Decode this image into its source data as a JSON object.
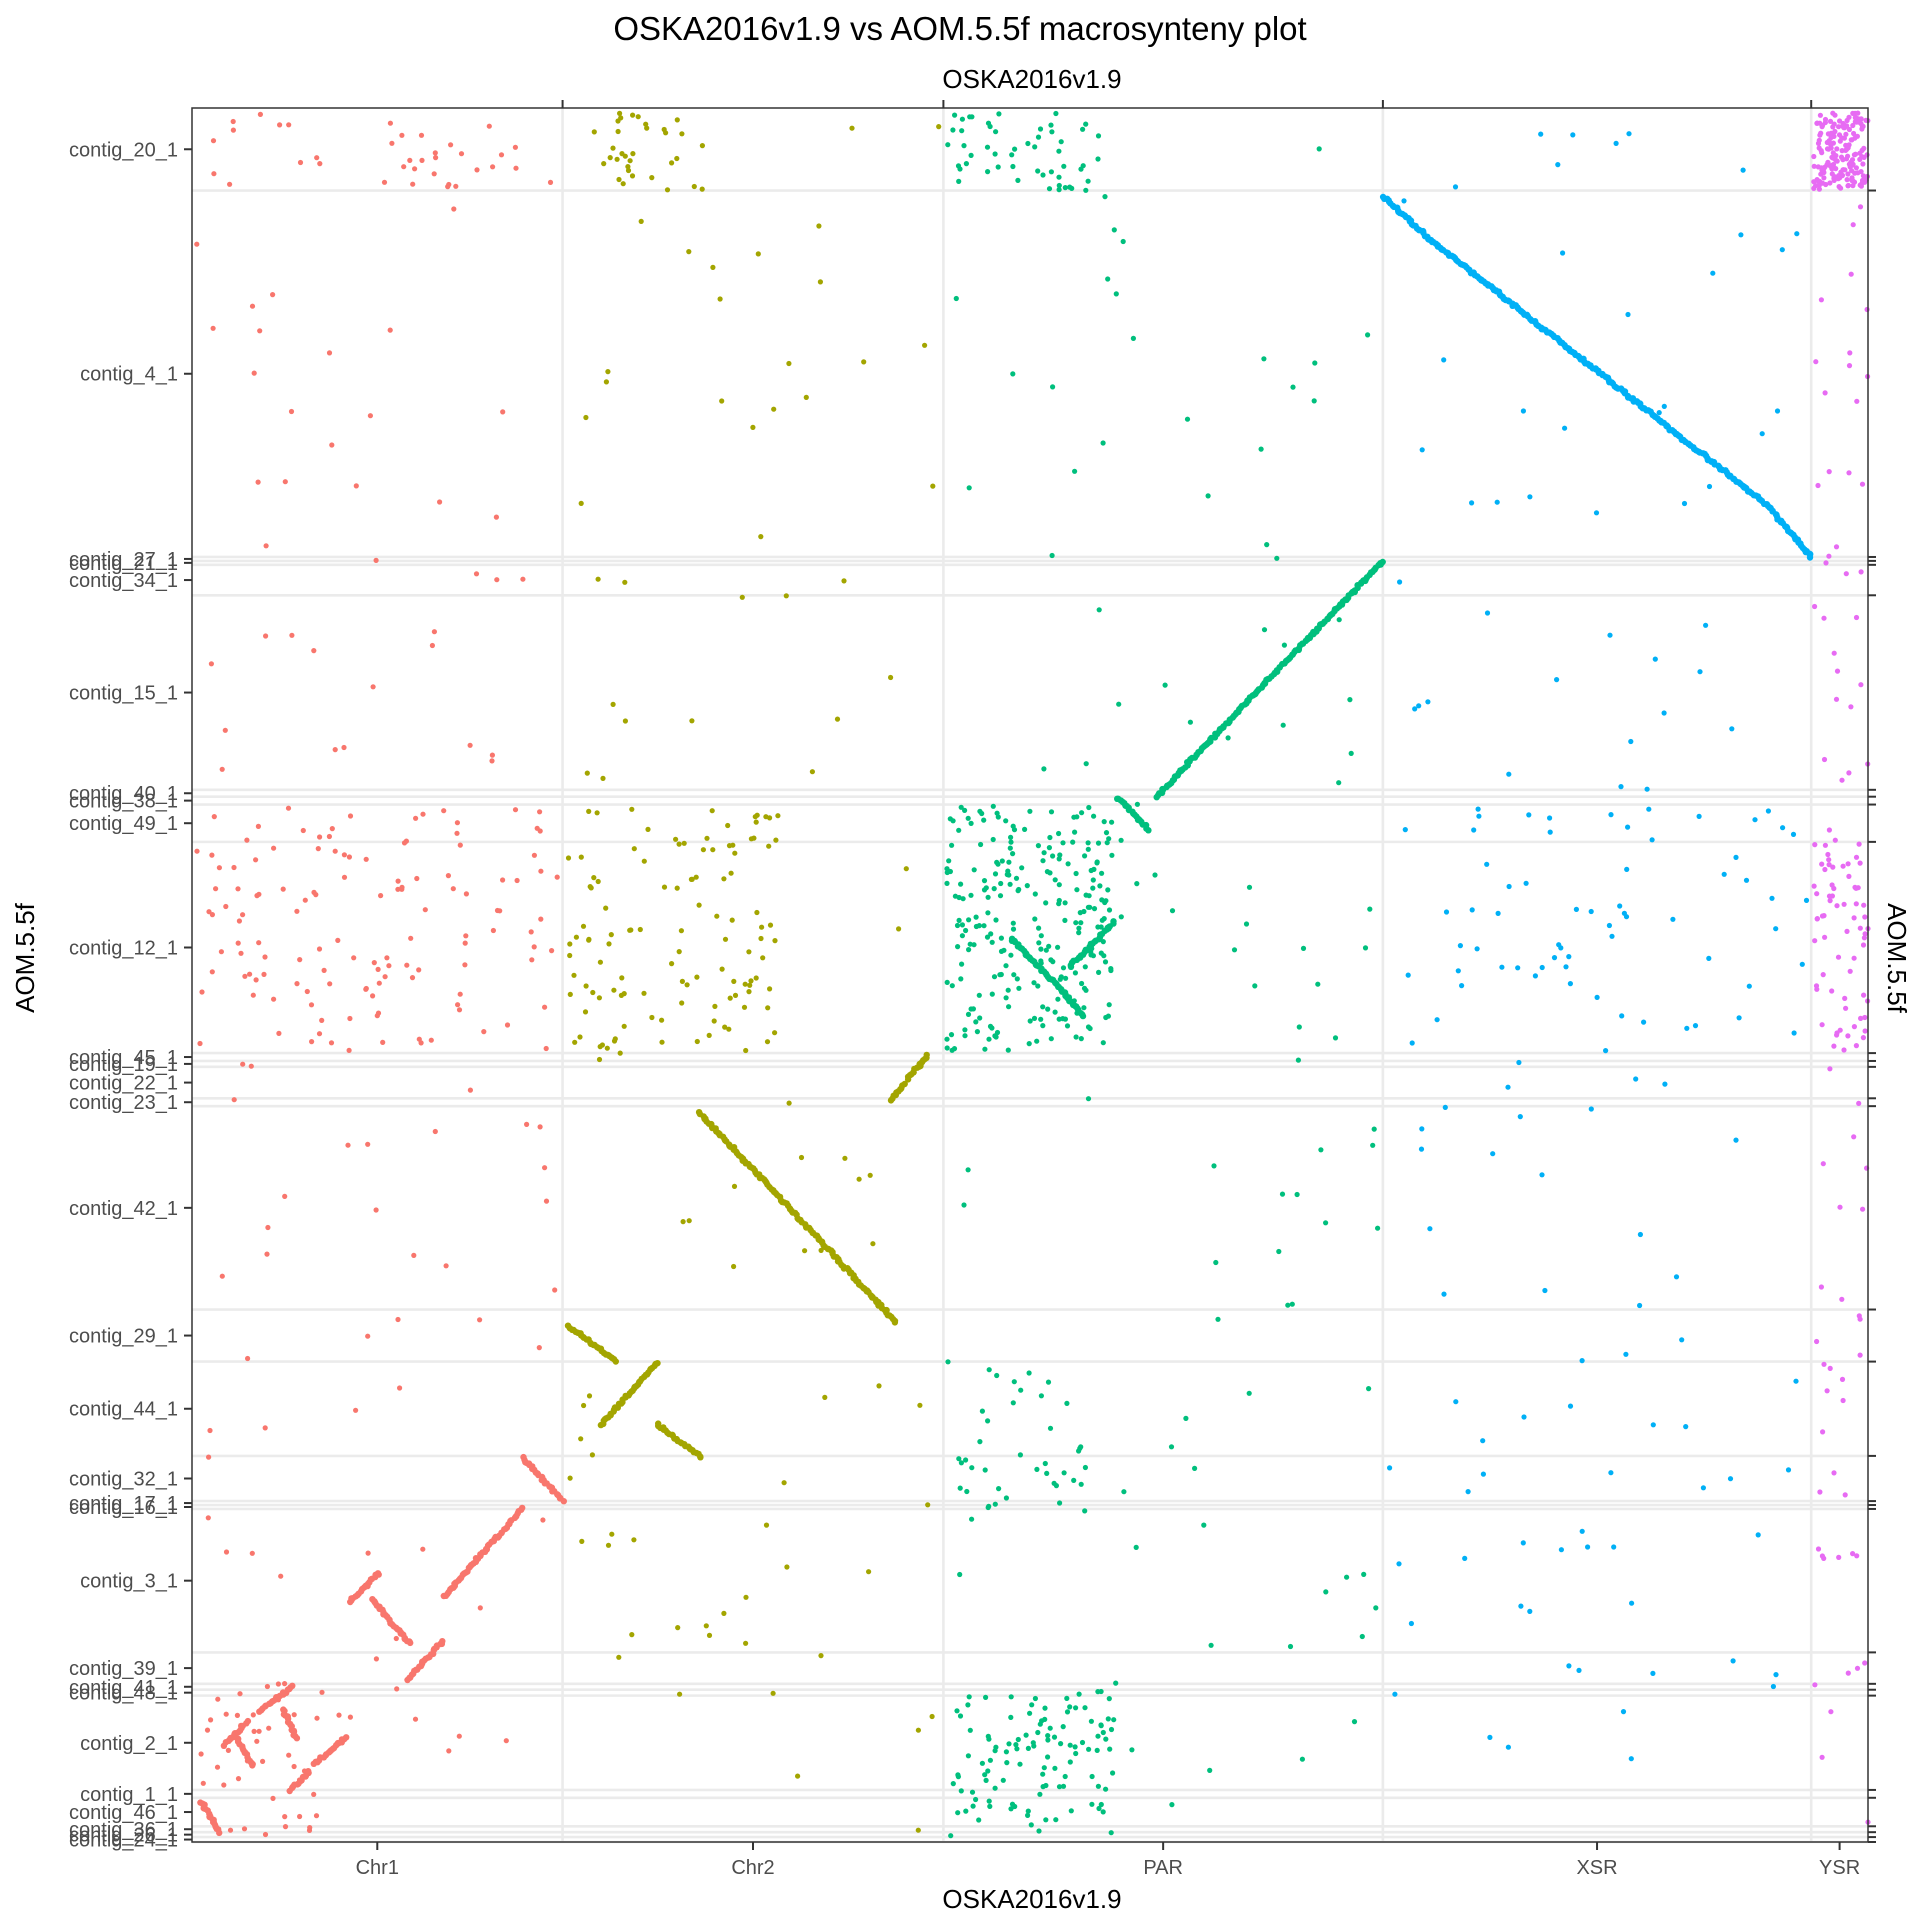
{
  "chart_data": {
    "type": "scatter",
    "title": "OSKA2016v1.9 vs AOM.5.5f macrosynteny plot",
    "xlabel": "OSKA2016v1.9",
    "ylabel": "AOM.5.5f",
    "x_unit": "Mb",
    "y_unit": "Mb",
    "xlim": [
      0,
      180.0
    ],
    "ylim": [
      0,
      176.5
    ],
    "legend": "none",
    "grid": true,
    "x_chromosomes": [
      {
        "name": "Chr1",
        "start": 0,
        "end": 39.8
      },
      {
        "name": "Chr2",
        "start": 39.8,
        "end": 80.7
      },
      {
        "name": "PAR",
        "start": 80.7,
        "end": 127.9
      },
      {
        "name": "XSR",
        "start": 127.9,
        "end": 173.9
      },
      {
        "name": "YSR",
        "start": 173.9,
        "end": 180.0
      }
    ],
    "y_contigs": [
      {
        "name": "contig_20_1",
        "start": 0,
        "end": 8.4
      },
      {
        "name": "contig_4_1",
        "start": 8.4,
        "end": 45.7
      },
      {
        "name": "contig_27_1",
        "start": 45.7,
        "end": 46.1
      },
      {
        "name": "contig_21_1",
        "start": 46.1,
        "end": 46.5
      },
      {
        "name": "contig_34_1",
        "start": 46.5,
        "end": 49.6
      },
      {
        "name": "contig_15_1",
        "start": 49.6,
        "end": 69.4
      },
      {
        "name": "contig_40_1",
        "start": 69.4,
        "end": 70.1
      },
      {
        "name": "contig_38_1",
        "start": 70.1,
        "end": 70.9
      },
      {
        "name": "contig_49_1",
        "start": 70.9,
        "end": 74.7
      },
      {
        "name": "contig_12_1",
        "start": 74.7,
        "end": 96.2
      },
      {
        "name": "contig_45_1",
        "start": 96.2,
        "end": 97.0
      },
      {
        "name": "contig_19_1",
        "start": 97.0,
        "end": 97.6
      },
      {
        "name": "contig_22_1",
        "start": 97.6,
        "end": 100.8
      },
      {
        "name": "contig_23_1",
        "start": 100.8,
        "end": 101.6
      },
      {
        "name": "contig_42_1",
        "start": 101.6,
        "end": 122.3
      },
      {
        "name": "contig_29_1",
        "start": 122.3,
        "end": 127.6
      },
      {
        "name": "contig_44_1",
        "start": 127.6,
        "end": 137.2
      },
      {
        "name": "contig_32_1",
        "start": 137.2,
        "end": 141.8
      },
      {
        "name": "contig_17_1",
        "start": 141.8,
        "end": 142.2
      },
      {
        "name": "contig_16_1",
        "start": 142.2,
        "end": 142.6
      },
      {
        "name": "contig_3_1",
        "start": 142.6,
        "end": 157.2
      },
      {
        "name": "contig_39_1",
        "start": 157.2,
        "end": 160.4
      },
      {
        "name": "contig_41_1",
        "start": 160.4,
        "end": 161.0
      },
      {
        "name": "contig_48_1",
        "start": 161.0,
        "end": 161.6
      },
      {
        "name": "contig_2_1",
        "start": 161.6,
        "end": 171.2
      },
      {
        "name": "contig_1_1",
        "start": 171.2,
        "end": 172.0
      },
      {
        "name": "contig_46_1",
        "start": 172.0,
        "end": 174.9
      },
      {
        "name": "contig_36_1",
        "start": 174.9,
        "end": 175.5
      },
      {
        "name": "contig_26_1",
        "start": 175.5,
        "end": 176.0
      },
      {
        "name": "contig_24_1",
        "start": 176.0,
        "end": 176.5
      }
    ],
    "series": [
      {
        "x_chrom": "Chr1",
        "color": "#F8766D"
      },
      {
        "x_chrom": "Chr2",
        "color": "#A3A500"
      },
      {
        "x_chrom": "PAR",
        "color": "#00BF7D"
      },
      {
        "x_chrom": "XSR",
        "color": "#00B0F6"
      },
      {
        "x_chrom": "YSR",
        "color": "#E76BF3"
      }
    ],
    "synteny_blocks": [
      {
        "chrom": "XSR",
        "x": [
          127.9,
          133.0
        ],
        "y": [
          9.0,
          13.4
        ]
      },
      {
        "chrom": "XSR",
        "x": [
          133.0,
          169.4
        ],
        "y": [
          13.4,
          40.6
        ]
      },
      {
        "chrom": "XSR",
        "x": [
          169.4,
          173.9
        ],
        "y": [
          40.6,
          45.7
        ]
      },
      {
        "chrom": "PAR",
        "x": [
          127.9,
          109.1
        ],
        "y": [
          46.1,
          64.6
        ]
      },
      {
        "chrom": "PAR",
        "x": [
          109.1,
          103.6
        ],
        "y": [
          64.6,
          70.1
        ]
      },
      {
        "chrom": "PAR",
        "x": [
          99.4,
          102.7
        ],
        "y": [
          70.2,
          73.4
        ]
      },
      {
        "chrom": "PAR",
        "x": [
          88.0,
          93.9
        ],
        "y": [
          84.5,
          90.3
        ]
      },
      {
        "chrom": "PAR",
        "x": [
          93.9,
          95.7
        ],
        "y": [
          90.3,
          92.4
        ]
      },
      {
        "chrom": "PAR",
        "x": [
          94.3,
          99.0
        ],
        "y": [
          87.4,
          82.9
        ]
      },
      {
        "chrom": "Chr2",
        "x": [
          79.0,
          76.8
        ],
        "y": [
          96.4,
          98.9
        ]
      },
      {
        "chrom": "Chr2",
        "x": [
          75.1,
          76.5
        ],
        "y": [
          100.9,
          99.4
        ]
      },
      {
        "chrom": "Chr2",
        "x": [
          54.5,
          67.4
        ],
        "y": [
          102.3,
          115.2
        ]
      },
      {
        "chrom": "Chr2",
        "x": [
          67.4,
          75.6
        ],
        "y": [
          115.2,
          123.6
        ]
      },
      {
        "chrom": "Chr2",
        "x": [
          43.9,
          50.0
        ],
        "y": [
          134.0,
          127.7
        ]
      },
      {
        "chrom": "Chr2",
        "x": [
          40.5,
          45.5
        ],
        "y": [
          124.0,
          127.6
        ]
      },
      {
        "chrom": "Chr2",
        "x": [
          50.0,
          54.7
        ],
        "y": [
          134.0,
          137.3
        ]
      },
      {
        "chrom": "Chr1",
        "x": [
          35.5,
          39.8
        ],
        "y": [
          137.4,
          141.7
        ]
      },
      {
        "chrom": "Chr1",
        "x": [
          35.5,
          27.0
        ],
        "y": [
          142.6,
          151.5
        ]
      },
      {
        "chrom": "Chr1",
        "x": [
          16.9,
          20.1
        ],
        "y": [
          152.1,
          149.1
        ]
      },
      {
        "chrom": "Chr1",
        "x": [
          19.3,
          23.4
        ],
        "y": [
          151.8,
          156.3
        ]
      },
      {
        "chrom": "Chr1",
        "x": [
          23.1,
          26.9
        ],
        "y": [
          160.0,
          156.1
        ]
      },
      {
        "chrom": "Chr1",
        "x": [
          13.2,
          16.5
        ],
        "y": [
          168.6,
          165.8
        ]
      },
      {
        "chrom": "Chr1",
        "x": [
          10.5,
          12.6
        ],
        "y": [
          171.2,
          169.4
        ]
      },
      {
        "chrom": "Chr1",
        "x": [
          4.6,
          6.6
        ],
        "y": [
          165.5,
          168.8
        ]
      },
      {
        "chrom": "Chr1",
        "x": [
          7.3,
          10.8
        ],
        "y": [
          163.2,
          160.7
        ]
      },
      {
        "chrom": "Chr1",
        "x": [
          9.8,
          11.2
        ],
        "y": [
          163.0,
          166.0
        ]
      },
      {
        "chrom": "Chr1",
        "x": [
          3.5,
          5.9
        ],
        "y": [
          166.6,
          164.3
        ]
      },
      {
        "chrom": "Chr1",
        "x": [
          1.0,
          3.0
        ],
        "y": [
          172.4,
          175.5
        ]
      }
    ],
    "scatter_regions": [
      {
        "chrom": "Chr1",
        "x": [
          0.5,
          39.5
        ],
        "y": [
          0.5,
          176
        ],
        "n": 110
      },
      {
        "chrom": "Chr1",
        "x": [
          0.5,
          39.0
        ],
        "y": [
          71,
          96
        ],
        "n": 110
      },
      {
        "chrom": "Chr1",
        "x": [
          0.5,
          16.0
        ],
        "y": [
          160,
          176
        ],
        "n": 40
      },
      {
        "chrom": "Chr1",
        "x": [
          0.5,
          39.0
        ],
        "y": [
          0.5,
          8.4
        ],
        "n": 30
      },
      {
        "chrom": "Chr2",
        "x": [
          40.3,
          80.5
        ],
        "y": [
          0.5,
          176
        ],
        "n": 90
      },
      {
        "chrom": "Chr2",
        "x": [
          40.3,
          63.0
        ],
        "y": [
          71,
          96
        ],
        "n": 110
      },
      {
        "chrom": "Chr2",
        "x": [
          43.0,
          55.0
        ],
        "y": [
          0.5,
          8.4
        ],
        "n": 30
      },
      {
        "chrom": "PAR",
        "x": [
          81.0,
          127.5
        ],
        "y": [
          0.5,
          176
        ],
        "n": 110
      },
      {
        "chrom": "PAR",
        "x": [
          81.0,
          99.0
        ],
        "y": [
          71,
          96
        ],
        "n": 240
      },
      {
        "chrom": "PAR",
        "x": [
          81.0,
          99.0
        ],
        "y": [
          161,
          176
        ],
        "n": 110
      },
      {
        "chrom": "PAR",
        "x": [
          81.0,
          98.0
        ],
        "y": [
          0.5,
          8.4
        ],
        "n": 50
      },
      {
        "chrom": "PAR",
        "x": [
          81.0,
          98.0
        ],
        "y": [
          127.6,
          143
        ],
        "n": 40
      },
      {
        "chrom": "XSR",
        "x": [
          128.3,
          173.5
        ],
        "y": [
          0.5,
          176
        ],
        "n": 120
      },
      {
        "chrom": "XSR",
        "x": [
          128.3,
          173.5
        ],
        "y": [
          71,
          96
        ],
        "n": 50
      },
      {
        "chrom": "YSR",
        "x": [
          174.1,
          180.0
        ],
        "y": [
          0.5,
          176
        ],
        "n": 80
      },
      {
        "chrom": "YSR",
        "x": [
          174.1,
          180.0
        ],
        "y": [
          0.5,
          8.4
        ],
        "n": 170
      },
      {
        "chrom": "YSR",
        "x": [
          174.1,
          180.0
        ],
        "y": [
          74,
          96
        ],
        "n": 60
      }
    ]
  }
}
